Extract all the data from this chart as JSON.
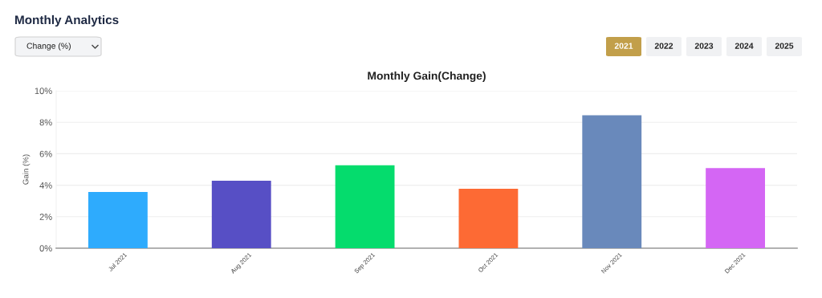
{
  "chart_data": {
    "type": "bar",
    "title": "Monthly Gain(Change)",
    "ylabel": "Gain (%)",
    "categories": [
      "Jul 2021",
      "Aug 2021",
      "Sep 2021",
      "Oct 2021",
      "Nov 2021",
      "Dec 2021"
    ],
    "values": [
      3.57,
      4.29,
      5.27,
      3.78,
      8.45,
      5.09
    ],
    "colors": [
      "#2eabfd",
      "#574fc5",
      "#05dc6d",
      "#fd6a34",
      "#6989bb",
      "#d466f4"
    ],
    "ylim": [
      0,
      10
    ],
    "yticks": [
      {
        "value": 0,
        "label": "0%"
      },
      {
        "value": 2,
        "label": "2%"
      },
      {
        "value": 4,
        "label": "4%"
      },
      {
        "value": 6,
        "label": "6%"
      },
      {
        "value": 8,
        "label": "8%"
      },
      {
        "value": 10,
        "label": "10%"
      }
    ],
    "grid": "y",
    "annotations": [
      "Monthly Analytics",
      "Change (%)",
      "2021",
      "2022",
      "2023",
      "2024",
      "2025"
    ]
  }
}
